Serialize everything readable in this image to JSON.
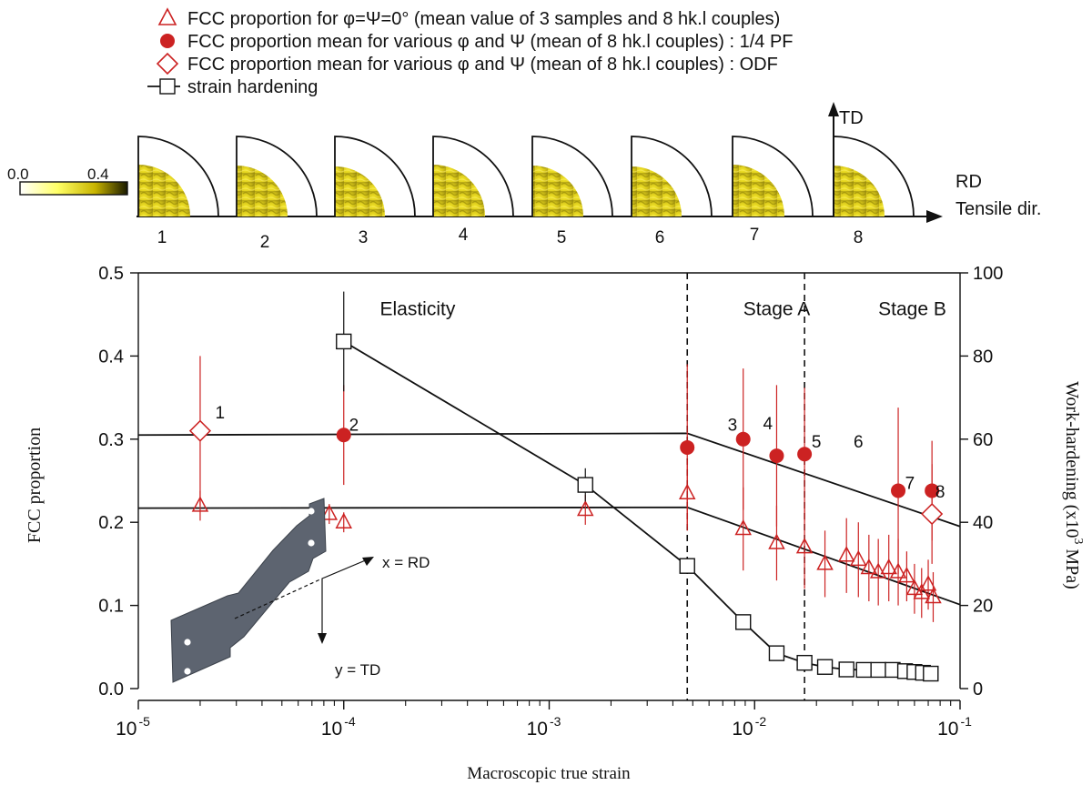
{
  "legend": {
    "items": [
      {
        "marker": "open-triangle",
        "text": "FCC proportion for φ=Ψ=0° (mean value of 3 samples and 8 hk.l couples)"
      },
      {
        "marker": "filled-circle",
        "text": "FCC proportion mean for various  φ and Ψ (mean of 8 hk.l couples) : 1/4 PF"
      },
      {
        "marker": "open-diamond",
        "text": "FCC proportion mean for various  φ and Ψ (mean of 8 hk.l couples) : ODF"
      },
      {
        "marker": "line-open-square",
        "text": "strain hardening"
      }
    ]
  },
  "pole_figures": {
    "colorbar": {
      "min": "0.0",
      "max": "0.4",
      "colors": [
        "#ffffff",
        "#ffff66",
        "#c8b400",
        "#1a1a00"
      ]
    },
    "labels": [
      "1",
      "2",
      "3",
      "4",
      "5",
      "6",
      "7",
      "8"
    ],
    "td_label": "TD",
    "rd_label": "RD",
    "tensile_label": "Tensile dir."
  },
  "specimen": {
    "x_label": "x = RD",
    "y_label": "y = TD"
  },
  "chart_data": {
    "type": "scatter",
    "x_scale": "log",
    "xlim": [
      1e-05,
      0.1
    ],
    "ylim": [
      0,
      0.5
    ],
    "y2lim": [
      0,
      100
    ],
    "xlabel": "Macroscopic true strain",
    "ylabel": "FCC proportion",
    "y2label": "Work-hardening (x10",
    "y2label_exp": "3",
    "y2label_unit": " MPa)",
    "x_ticks": [
      {
        "value": 1e-05,
        "base": "10",
        "exp": "-5"
      },
      {
        "value": 0.0001,
        "base": "10",
        "exp": "-4"
      },
      {
        "value": 0.001,
        "base": "10",
        "exp": "-3"
      },
      {
        "value": 0.01,
        "base": "10",
        "exp": "-2"
      },
      {
        "value": 0.1,
        "base": "10",
        "exp": "-1"
      }
    ],
    "y_ticks": [
      "0.0",
      "0.1",
      "0.2",
      "0.3",
      "0.4",
      "0.5"
    ],
    "y2_ticks": [
      "0",
      "20",
      "40",
      "60",
      "80",
      "100"
    ],
    "region_dividers": [
      0.0047,
      0.0175
    ],
    "region_labels": [
      {
        "text": "Elasticity",
        "x": 0.00015,
        "y": 0.46
      },
      {
        "text": "Stage A",
        "x": 0.0088,
        "y": 0.46
      },
      {
        "text": "Stage B",
        "x": 0.04,
        "y": 0.46
      }
    ],
    "colors": {
      "fcc": "#cc2222",
      "hardening": "#111111"
    },
    "series": [
      {
        "name": "FCC proportion for φ=Ψ=0° (mean value of 3 samples and 8 hk.l couples)",
        "marker": "triangle",
        "points": [
          {
            "x": 2e-05,
            "y": 0.22,
            "err": 0.018
          },
          {
            "x": 8.5e-05,
            "y": 0.21,
            "err": 0.012
          },
          {
            "x": 0.0001,
            "y": 0.2,
            "err": 0.012
          },
          {
            "x": 0.0015,
            "y": 0.215,
            "err": 0.018
          },
          {
            "x": 0.0047,
            "y": 0.235,
            "err": 0.04
          },
          {
            "x": 0.0088,
            "y": 0.192,
            "err": 0.05
          },
          {
            "x": 0.0128,
            "y": 0.175,
            "err": 0.045
          },
          {
            "x": 0.0175,
            "y": 0.17,
            "err": 0.05
          },
          {
            "x": 0.022,
            "y": 0.15,
            "err": 0.04
          },
          {
            "x": 0.028,
            "y": 0.16,
            "err": 0.045
          },
          {
            "x": 0.032,
            "y": 0.155,
            "err": 0.045
          },
          {
            "x": 0.036,
            "y": 0.145,
            "err": 0.04
          },
          {
            "x": 0.04,
            "y": 0.14,
            "err": 0.04
          },
          {
            "x": 0.045,
            "y": 0.145,
            "err": 0.04
          },
          {
            "x": 0.05,
            "y": 0.14,
            "err": 0.04
          },
          {
            "x": 0.055,
            "y": 0.135,
            "err": 0.03
          },
          {
            "x": 0.06,
            "y": 0.12,
            "err": 0.03
          },
          {
            "x": 0.065,
            "y": 0.115,
            "err": 0.03
          },
          {
            "x": 0.07,
            "y": 0.125,
            "err": 0.03
          },
          {
            "x": 0.074,
            "y": 0.11,
            "err": 0.03
          }
        ]
      },
      {
        "name": "FCC proportion mean for various  φ and Ψ (mean of 8 hk.l couples) : 1/4 PF",
        "marker": "circle",
        "points": [
          {
            "x": 0.0001,
            "y": 0.305,
            "err": 0.06
          },
          {
            "x": 0.0047,
            "y": 0.29,
            "err": 0.1
          },
          {
            "x": 0.0088,
            "y": 0.3,
            "err": 0.085
          },
          {
            "x": 0.0128,
            "y": 0.28,
            "err": 0.085
          },
          {
            "x": 0.0175,
            "y": 0.282,
            "err": 0.08
          },
          {
            "x": 0.05,
            "y": 0.238,
            "err": 0.1
          },
          {
            "x": 0.073,
            "y": 0.238,
            "err": 0.06
          }
        ]
      },
      {
        "name": "FCC proportion mean for various  φ and Ψ (mean of 8 hk.l couples) : ODF",
        "marker": "diamond",
        "points": [
          {
            "x": 2e-05,
            "y": 0.31,
            "err": 0.09
          },
          {
            "x": 0.073,
            "y": 0.21,
            "err": 0.06
          }
        ]
      },
      {
        "name": "strain hardening",
        "marker": "square",
        "axis": "right",
        "points": [
          {
            "x": 0.0001,
            "y": 83.5,
            "err": 12
          },
          {
            "x": 0.0015,
            "y": 49,
            "err": 4
          },
          {
            "x": 0.0047,
            "y": 29.5,
            "err": 0
          },
          {
            "x": 0.0088,
            "y": 16,
            "err": 0
          },
          {
            "x": 0.0128,
            "y": 8.5,
            "err": 0
          },
          {
            "x": 0.0175,
            "y": 6.2,
            "err": 0
          },
          {
            "x": 0.022,
            "y": 5.2,
            "err": 0
          },
          {
            "x": 0.028,
            "y": 4.6,
            "err": 0
          },
          {
            "x": 0.034,
            "y": 4.5,
            "err": 0
          },
          {
            "x": 0.04,
            "y": 4.5,
            "err": 0
          },
          {
            "x": 0.047,
            "y": 4.5,
            "err": 0
          },
          {
            "x": 0.054,
            "y": 4.2,
            "err": 0
          },
          {
            "x": 0.06,
            "y": 4,
            "err": 0
          },
          {
            "x": 0.066,
            "y": 3.8,
            "err": 0
          },
          {
            "x": 0.072,
            "y": 3.6,
            "err": 0
          }
        ]
      }
    ],
    "trend_lines": [
      {
        "points": [
          [
            1e-05,
            0.305
          ],
          [
            0.0047,
            0.307
          ],
          [
            0.1,
            0.195
          ]
        ]
      },
      {
        "points": [
          [
            1e-05,
            0.217
          ],
          [
            0.0047,
            0.218
          ],
          [
            0.1,
            0.101
          ]
        ]
      }
    ],
    "point_labels": [
      {
        "text": "1",
        "x": 2.5e-05,
        "y": 0.325
      },
      {
        "text": "2",
        "x": 0.000112,
        "y": 0.31
      },
      {
        "text": "3",
        "x": 0.0078,
        "y": 0.31
      },
      {
        "text": "4",
        "x": 0.0116,
        "y": 0.312
      },
      {
        "text": "5",
        "x": 0.02,
        "y": 0.29
      },
      {
        "text": "6",
        "x": 0.032,
        "y": 0.29
      },
      {
        "text": "7",
        "x": 0.057,
        "y": 0.24
      },
      {
        "text": "8",
        "x": 0.08,
        "y": 0.23
      }
    ]
  }
}
